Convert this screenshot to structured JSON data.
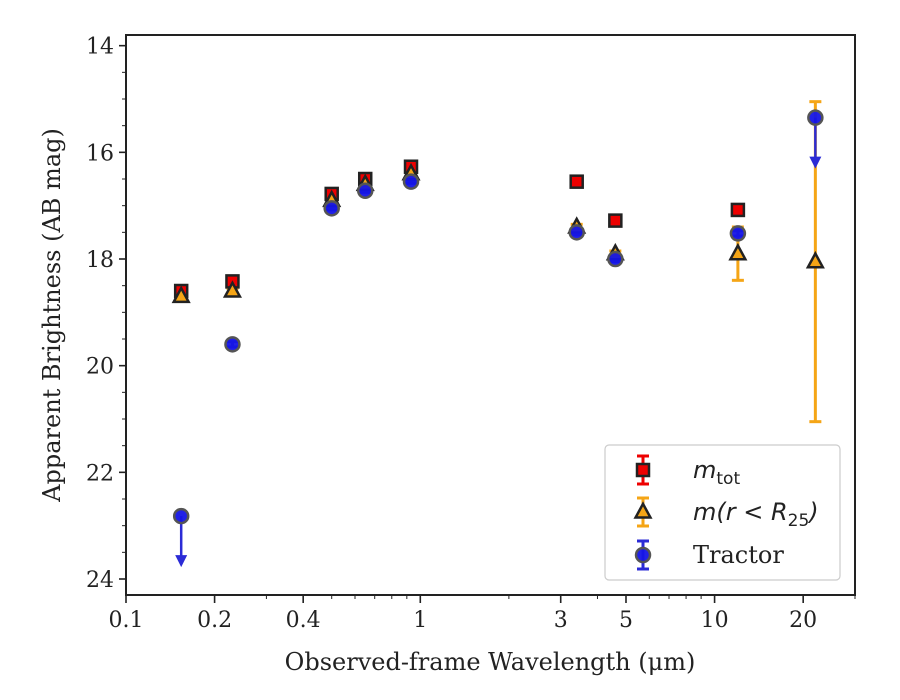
{
  "chart_data": {
    "type": "scatter",
    "title": "",
    "xlabel": "Observed-frame Wavelength (μm)",
    "ylabel": "Apparent Brightness (AB mag)",
    "xscale": "log",
    "xlim": [
      0.1,
      30
    ],
    "ylim": [
      24.3,
      13.8
    ],
    "y_inverted": true,
    "x_ticks": [
      0.1,
      0.2,
      0.4,
      1,
      3,
      5,
      10,
      20
    ],
    "x_tick_labels": [
      "0.1",
      "0.2",
      "0.4",
      "1",
      "3",
      "5",
      "10",
      "20"
    ],
    "y_ticks": [
      14,
      16,
      18,
      20,
      22,
      24
    ],
    "y_tick_labels": [
      "14",
      "16",
      "18",
      "20",
      "22",
      "24"
    ],
    "legend_position": "lower-right",
    "series": [
      {
        "name": "m_tot",
        "label_base": "m",
        "label_sub": "tot",
        "marker": "square",
        "color": "#ee0000",
        "errcolor": "#ee0000",
        "points": [
          {
            "x": 0.154,
            "y": 18.6,
            "err": 0.1
          },
          {
            "x": 0.23,
            "y": 18.42,
            "err": 0.05
          },
          {
            "x": 0.5,
            "y": 16.78,
            "err": 0.03
          },
          {
            "x": 0.65,
            "y": 16.5,
            "err": 0.03
          },
          {
            "x": 0.93,
            "y": 16.27,
            "err": 0.03
          },
          {
            "x": 3.4,
            "y": 16.55,
            "err": 0.03
          },
          {
            "x": 4.6,
            "y": 17.28,
            "err": 0.03
          },
          {
            "x": 12.0,
            "y": 17.08,
            "err": 0.03
          }
        ]
      },
      {
        "name": "m(r<R25)",
        "label_base": "m(r < R",
        "label_sub": "25",
        "label_tail": ")",
        "marker": "triangle",
        "color": "#f5a516",
        "errcolor": "#f5a516",
        "points": [
          {
            "x": 0.154,
            "y": 18.7,
            "err": 0.05
          },
          {
            "x": 0.23,
            "y": 18.6,
            "err": 0.05
          },
          {
            "x": 0.5,
            "y": 16.9,
            "err": 0.03
          },
          {
            "x": 0.65,
            "y": 16.6,
            "err": 0.03
          },
          {
            "x": 0.93,
            "y": 16.4,
            "err": 0.03
          },
          {
            "x": 3.4,
            "y": 17.4,
            "err": 0.05
          },
          {
            "x": 4.6,
            "y": 17.9,
            "err": 0.05
          },
          {
            "x": 12.0,
            "y": 17.9,
            "err": 0.5
          },
          {
            "x": 22.0,
            "y": 18.05,
            "err_low": 3.0,
            "err_high": 3.0
          }
        ]
      },
      {
        "name": "Tractor",
        "label_base": "Tractor",
        "marker": "circle",
        "color": "#1515e6",
        "errcolor": "#2b2bd6",
        "points": [
          {
            "x": 0.154,
            "y": 22.82,
            "upper_limit": true
          },
          {
            "x": 0.23,
            "y": 19.6,
            "err": 0.05
          },
          {
            "x": 0.5,
            "y": 17.05,
            "err": 0.03
          },
          {
            "x": 0.65,
            "y": 16.72,
            "err": 0.03
          },
          {
            "x": 0.93,
            "y": 16.55,
            "err": 0.03
          },
          {
            "x": 3.4,
            "y": 17.5,
            "err": 0.05
          },
          {
            "x": 4.6,
            "y": 18.0,
            "err": 0.05
          },
          {
            "x": 12.0,
            "y": 17.52,
            "err": 0.05
          },
          {
            "x": 22.0,
            "y": 15.35,
            "upper_limit": true
          }
        ]
      }
    ]
  }
}
